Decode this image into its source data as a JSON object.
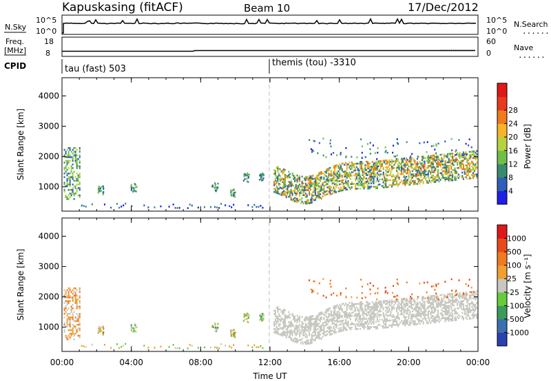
{
  "header": {
    "station": "Kapuskasing (fitACF)",
    "beam": "Beam 10",
    "date": "17/Dec/2012"
  },
  "side_labels": {
    "nsky": "N.Sky",
    "nsearch": "N.Search",
    "freq": "Freq.",
    "freq_unit": "[MHz]",
    "nave": "Nave",
    "cpid": "CPID",
    "dots": "......"
  },
  "strip_ticks": {
    "noise_left": [
      "10^5",
      "10^0"
    ],
    "noise_right": [
      "10^5",
      "10^0"
    ],
    "freq_left": [
      "18",
      "8"
    ],
    "nave_right": [
      "60",
      "0"
    ]
  },
  "cpid_labels": {
    "left": "tau (fast) 503",
    "right": "themis (tou) -3310"
  },
  "chart_data": [
    {
      "type": "heatmap",
      "name": "power",
      "ylabel": "Slant Range [km]",
      "xlabel": "",
      "ylim": [
        200,
        4600
      ],
      "yticks": [
        "1000",
        "2000",
        "3000",
        "4000"
      ],
      "colorbar": {
        "label": "Power [dB]",
        "ticks": [
          "4",
          "8",
          "12",
          "16",
          "20",
          "24",
          "28"
        ],
        "colors": [
          "#1f1fe6",
          "#2f5fb8",
          "#3a8a6e",
          "#6fbf4a",
          "#b8d23c",
          "#f6b428",
          "#f07a1e",
          "#e83a1c",
          "#e01818"
        ]
      }
    },
    {
      "type": "heatmap",
      "name": "velocity",
      "ylabel": "Slant Range [km]",
      "xlabel": "Time UT",
      "ylim": [
        200,
        4600
      ],
      "yticks": [
        "1000",
        "2000",
        "3000",
        "4000"
      ],
      "xticks": [
        "00:00",
        "04:00",
        "08:00",
        "12:00",
        "16:00",
        "20:00",
        "00:00"
      ],
      "colorbar": {
        "label": "Velocity [m s⁻¹]",
        "ticks": [
          "1000",
          "500",
          "100",
          "25",
          "-25",
          "-100",
          "-500",
          "-1000"
        ],
        "colors": [
          "#2a3fb0",
          "#3a6fb0",
          "#3c9a5a",
          "#66cc3c",
          "#c8c8c0",
          "#f0a030",
          "#f07a1e",
          "#e84a1c",
          "#e01818"
        ]
      }
    }
  ]
}
